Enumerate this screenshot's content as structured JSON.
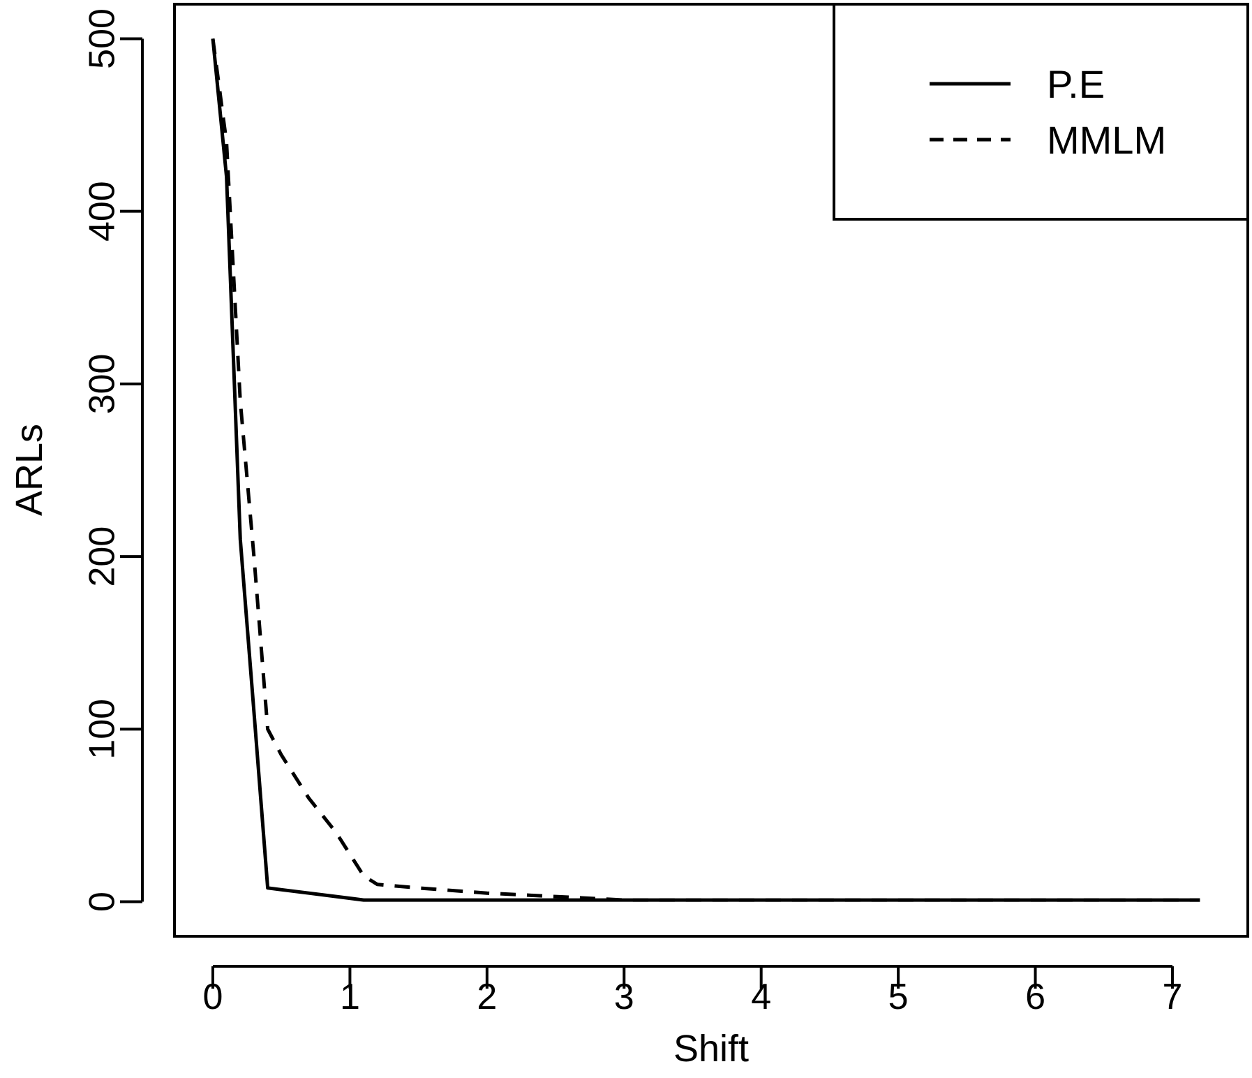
{
  "chart_data": {
    "type": "line",
    "xlabel": "Shift",
    "ylabel": "ARLs",
    "xlim": [
      -0.28,
      7.55
    ],
    "ylim": [
      -20,
      520
    ],
    "xticks": [
      "0",
      "1",
      "2",
      "3",
      "4",
      "5",
      "6",
      "7"
    ],
    "yticks": [
      "0",
      "100",
      "200",
      "300",
      "400",
      "500"
    ],
    "grid": false,
    "legend_position": "top-right",
    "series": [
      {
        "name": "P.E",
        "line_style": "solid",
        "color": "#000000",
        "x": [
          0,
          0.1,
          0.2,
          0.3,
          0.4,
          0.5,
          0.7,
          0.9,
          1.1,
          1.5,
          2,
          3,
          4,
          5,
          6,
          7.2
        ],
        "y": [
          500,
          420,
          210,
          110,
          8,
          7,
          5,
          3,
          1,
          1,
          1,
          1,
          1,
          1,
          1,
          1
        ]
      },
      {
        "name": "MMLM",
        "line_style": "dashed",
        "color": "#000000",
        "x": [
          0,
          0.1,
          0.2,
          0.3,
          0.4,
          0.5,
          0.7,
          0.9,
          1.1,
          1.2,
          1.5,
          2,
          2.5,
          3,
          4,
          5,
          6,
          7.2
        ],
        "y": [
          500,
          440,
          290,
          200,
          100,
          85,
          60,
          40,
          15,
          10,
          8,
          5,
          3,
          1,
          1,
          1,
          1,
          1
        ]
      }
    ]
  }
}
